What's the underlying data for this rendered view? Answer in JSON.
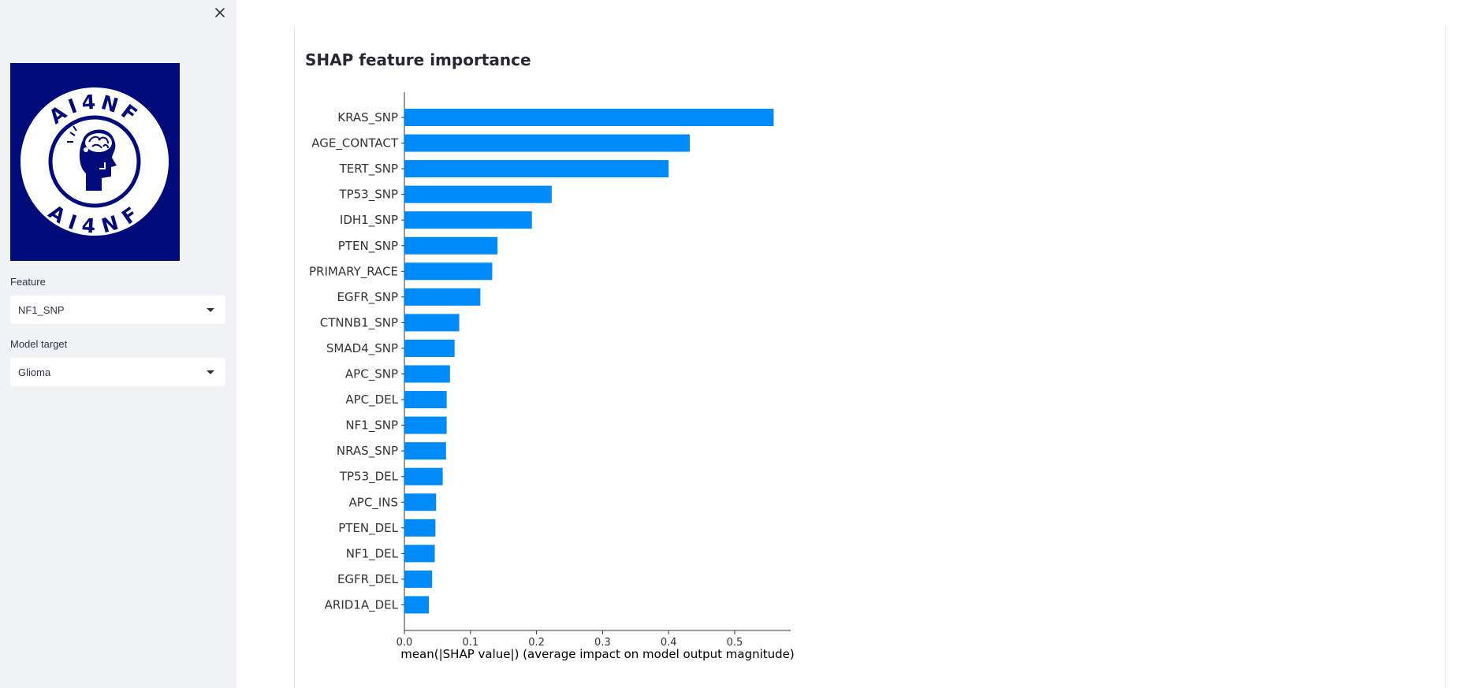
{
  "sidebar": {
    "close_icon": "close-icon",
    "logo": {
      "text": "AI4NF",
      "background": "#020b7a"
    },
    "feature": {
      "label": "Feature",
      "value": "NF1_SNP"
    },
    "model_target": {
      "label": "Model target",
      "value": "Glioma"
    }
  },
  "main": {
    "title": "SHAP feature importance"
  },
  "chart_data": {
    "type": "bar",
    "orientation": "horizontal",
    "title": "",
    "xlabel": "mean(|SHAP value|) (average impact on model output magnitude)",
    "ylabel": "",
    "xlim": [
      0,
      0.59
    ],
    "xticks": [
      "0.0",
      "0.1",
      "0.2",
      "0.3",
      "0.4",
      "0.5"
    ],
    "bar_color": "#008bfb",
    "grid": false,
    "categories": [
      "KRAS_SNP",
      "AGE_CONTACT",
      "TERT_SNP",
      "TP53_SNP",
      "IDH1_SNP",
      "PTEN_SNP",
      "PRIMARY_RACE",
      "EGFR_SNP",
      "CTNNB1_SNP",
      "SMAD4_SNP",
      "APC_SNP",
      "APC_DEL",
      "NF1_SNP",
      "NRAS_SNP",
      "TP53_DEL",
      "APC_INS",
      "PTEN_DEL",
      "NF1_DEL",
      "EGFR_DEL",
      "ARID1A_DEL"
    ],
    "values": [
      0.559,
      0.432,
      0.4,
      0.223,
      0.193,
      0.141,
      0.133,
      0.115,
      0.083,
      0.076,
      0.069,
      0.064,
      0.064,
      0.063,
      0.058,
      0.048,
      0.047,
      0.046,
      0.042,
      0.037
    ]
  }
}
